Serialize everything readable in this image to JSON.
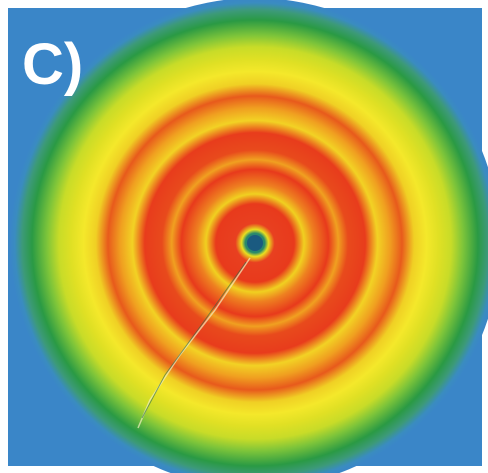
{
  "label": "C)"
}
